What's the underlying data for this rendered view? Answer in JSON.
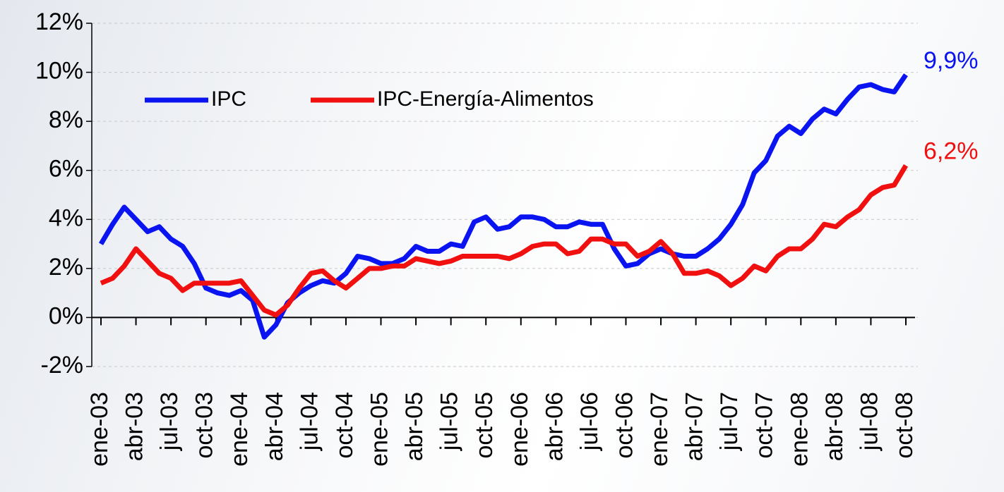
{
  "chart_data": {
    "type": "line",
    "categories": [
      "ene-03",
      null,
      null,
      "abr-03",
      null,
      null,
      "jul-03",
      null,
      null,
      "oct-03",
      null,
      null,
      "ene-04",
      null,
      null,
      "abr-04",
      null,
      null,
      "jul-04",
      null,
      null,
      "oct-04",
      null,
      null,
      "ene-05",
      null,
      null,
      "abr-05",
      null,
      null,
      "jul-05",
      null,
      null,
      "oct-05",
      null,
      null,
      "ene-06",
      null,
      null,
      "abr-06",
      null,
      null,
      "jul-06",
      null,
      null,
      "oct-06",
      null,
      null,
      "ene-07",
      null,
      null,
      "abr-07",
      null,
      null,
      "jul-07",
      null,
      null,
      "oct-07",
      null,
      null,
      "ene-08",
      null,
      null,
      "abr-08",
      null,
      null,
      "jul-08",
      null,
      null,
      "oct-08"
    ],
    "series": [
      {
        "name": "IPC",
        "color": "#0a14f0",
        "values": [
          3.0,
          3.8,
          4.5,
          4.0,
          3.5,
          3.7,
          3.2,
          2.9,
          2.2,
          1.2,
          1.0,
          0.9,
          1.1,
          0.7,
          -0.8,
          -0.3,
          0.6,
          1.0,
          1.3,
          1.5,
          1.4,
          1.8,
          2.5,
          2.4,
          2.2,
          2.2,
          2.4,
          2.9,
          2.7,
          2.7,
          3.0,
          2.9,
          3.9,
          4.1,
          3.6,
          3.7,
          4.1,
          4.1,
          4.0,
          3.7,
          3.7,
          3.9,
          3.8,
          3.8,
          2.8,
          2.1,
          2.2,
          2.6,
          2.8,
          2.6,
          2.5,
          2.5,
          2.8,
          3.2,
          3.8,
          4.6,
          5.9,
          6.4,
          7.4,
          7.8,
          7.5,
          8.1,
          8.5,
          8.3,
          8.9,
          9.4,
          9.5,
          9.3,
          9.2,
          9.9
        ],
        "value_labels": [
          null,
          null,
          null,
          null,
          null,
          null,
          null,
          null,
          null,
          null,
          null,
          null,
          null,
          null,
          null,
          null,
          null,
          null,
          null,
          null,
          null,
          null,
          null,
          null,
          null,
          null,
          null,
          null,
          null,
          null,
          null,
          null,
          null,
          null,
          null,
          null,
          null,
          null,
          null,
          null,
          null,
          null,
          null,
          null,
          null,
          null,
          null,
          null,
          null,
          null,
          null,
          null,
          null,
          null,
          null,
          null,
          null,
          null,
          null,
          null,
          null,
          null,
          null,
          null,
          null,
          null,
          null,
          null,
          null,
          "9,9%"
        ]
      },
      {
        "name": "IPC-Energía-Alimentos",
        "color": "#f01010",
        "values": [
          1.4,
          1.6,
          2.1,
          2.8,
          2.3,
          1.8,
          1.6,
          1.1,
          1.4,
          1.4,
          1.4,
          1.4,
          1.5,
          0.9,
          0.3,
          0.1,
          0.5,
          1.2,
          1.8,
          1.9,
          1.5,
          1.2,
          1.6,
          2.0,
          2.0,
          2.1,
          2.1,
          2.4,
          2.3,
          2.2,
          2.3,
          2.5,
          2.5,
          2.5,
          2.5,
          2.4,
          2.6,
          2.9,
          3.0,
          3.0,
          2.6,
          2.7,
          3.2,
          3.2,
          3.0,
          3.0,
          2.5,
          2.7,
          3.1,
          2.6,
          1.8,
          1.8,
          1.9,
          1.7,
          1.3,
          1.6,
          2.1,
          1.9,
          2.5,
          2.8,
          2.8,
          3.2,
          3.8,
          3.7,
          4.1,
          4.4,
          5.0,
          5.3,
          5.4,
          6.2
        ],
        "value_labels": [
          null,
          null,
          null,
          null,
          null,
          null,
          null,
          null,
          null,
          null,
          null,
          null,
          null,
          null,
          null,
          null,
          null,
          null,
          null,
          null,
          null,
          null,
          null,
          null,
          null,
          null,
          null,
          null,
          null,
          null,
          null,
          null,
          null,
          null,
          null,
          null,
          null,
          null,
          null,
          null,
          null,
          null,
          null,
          null,
          null,
          null,
          null,
          null,
          null,
          null,
          null,
          null,
          null,
          null,
          null,
          null,
          null,
          null,
          null,
          null,
          null,
          null,
          null,
          null,
          null,
          null,
          null,
          null,
          null,
          "6,2%"
        ]
      }
    ],
    "ylim": [
      -2,
      12
    ],
    "yticks": [
      {
        "value": -2,
        "label": "-2%"
      },
      {
        "value": 0,
        "label": "0%"
      },
      {
        "value": 2,
        "label": "2%"
      },
      {
        "value": 4,
        "label": "4%"
      },
      {
        "value": 6,
        "label": "6%"
      },
      {
        "value": 8,
        "label": "8%"
      },
      {
        "value": 10,
        "label": "10%"
      },
      {
        "value": 12,
        "label": "12%"
      }
    ],
    "grid": true,
    "legend": "top-left"
  }
}
